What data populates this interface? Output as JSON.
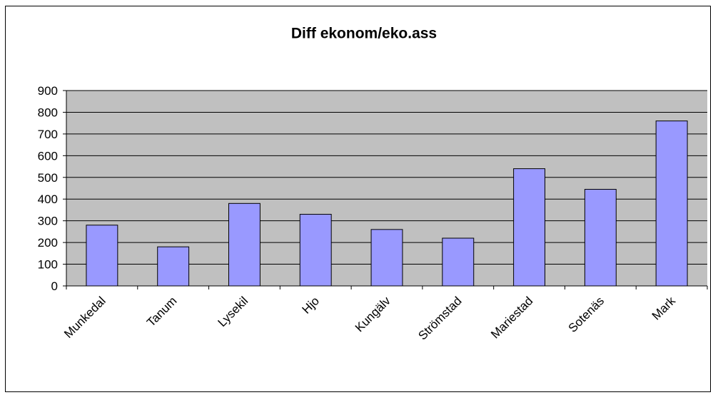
{
  "chart_data": {
    "type": "bar",
    "title": "Diff ekonom/eko.ass",
    "categories": [
      "Munkedal",
      "Tanum",
      "Lysekil",
      "Hjo",
      "Kungälv",
      "Strömstad",
      "Mariestad",
      "Sotenäs",
      "Mark"
    ],
    "values": [
      280,
      180,
      380,
      330,
      260,
      220,
      540,
      445,
      760
    ],
    "color": "#9999ff",
    "ylim": [
      0,
      900
    ],
    "yticks": [
      0,
      100,
      200,
      300,
      400,
      500,
      600,
      700,
      800,
      900
    ],
    "grid": true
  }
}
